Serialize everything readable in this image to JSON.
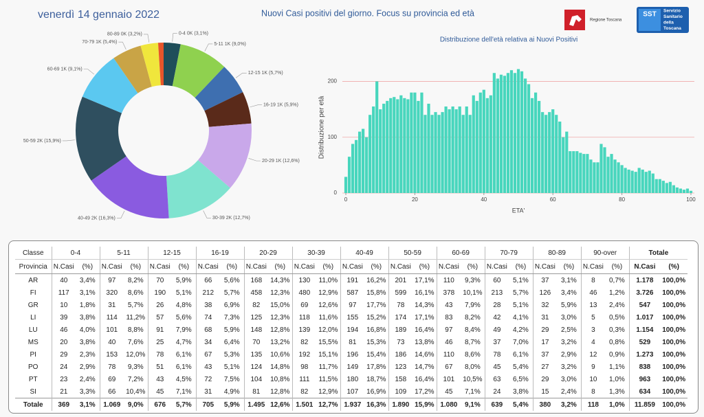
{
  "header": {
    "date": "venerdì 14 gennaio 2022",
    "title": "Nuovi Casi positivi del giorno. Focus su provincia ed età",
    "logo_left": "Regione Toscana",
    "logo_badge": "SST",
    "logo_right_lines": [
      "Servizio",
      "Sanitario",
      "della",
      "Toscana"
    ]
  },
  "chart_data": [
    {
      "type": "donut",
      "categories": [
        "0-4 0K (3,1%)",
        "5-11 1K (9,0%)",
        "12-15 1K (5,7%)",
        "16-19 1K (5,9%)",
        "20-29 1K (12,6%)",
        "30-39 2K (12,7%)",
        "40-49 2K (16,3%)",
        "50-59 2K (15,9%)",
        "60-69 1K (9,1%)",
        "70-79 1K (5,4%)",
        "80-89 0K (3,2%)",
        null
      ],
      "values": [
        3.1,
        9.0,
        5.7,
        5.9,
        12.6,
        12.7,
        16.3,
        15.9,
        9.1,
        5.4,
        3.2,
        1.0
      ],
      "colors": [
        "#1f4e5a",
        "#8fd14f",
        "#3e6fb0",
        "#5a2a1a",
        "#c9a8ea",
        "#7fe3cf",
        "#8a5be0",
        "#2f4f5f",
        "#5bc8f0",
        "#c9a446",
        "#f0e63c",
        "#e8552a"
      ]
    },
    {
      "type": "bar",
      "title": "Distribuzione dell'età relativa ai Nuovi Positivi",
      "x_label": "ETA'",
      "y_label": "Distribuzione per età",
      "x": [
        0,
        1,
        2,
        3,
        4,
        5,
        6,
        7,
        8,
        9,
        10,
        11,
        12,
        13,
        14,
        15,
        16,
        17,
        18,
        19,
        20,
        21,
        22,
        23,
        24,
        25,
        26,
        27,
        28,
        29,
        30,
        31,
        32,
        33,
        34,
        35,
        36,
        37,
        38,
        39,
        40,
        41,
        42,
        43,
        44,
        45,
        46,
        47,
        48,
        49,
        50,
        51,
        52,
        53,
        54,
        55,
        56,
        57,
        58,
        59,
        60,
        61,
        62,
        63,
        64,
        65,
        66,
        67,
        68,
        69,
        70,
        71,
        72,
        73,
        74,
        75,
        76,
        77,
        78,
        79,
        80,
        81,
        82,
        83,
        84,
        85,
        86,
        87,
        88,
        89,
        90,
        91,
        92,
        93,
        94,
        95,
        96,
        97,
        98,
        99,
        100
      ],
      "values": [
        29,
        65,
        88,
        95,
        110,
        115,
        100,
        140,
        155,
        200,
        150,
        160,
        165,
        170,
        172,
        168,
        175,
        170,
        168,
        180,
        180,
        165,
        180,
        140,
        160,
        140,
        145,
        140,
        145,
        155,
        150,
        155,
        150,
        155,
        140,
        155,
        140,
        175,
        165,
        180,
        185,
        170,
        175,
        215,
        205,
        212,
        210,
        215,
        220,
        215,
        222,
        218,
        205,
        195,
        170,
        180,
        165,
        145,
        140,
        145,
        150,
        140,
        128,
        100,
        110,
        75,
        75,
        75,
        72,
        70,
        70,
        60,
        55,
        55,
        88,
        82,
        65,
        70,
        60,
        55,
        50,
        45,
        42,
        40,
        38,
        45,
        42,
        38,
        40,
        35,
        25,
        25,
        22,
        18,
        20,
        14,
        10,
        8,
        6,
        8,
        4
      ],
      "color": "#48d6bd",
      "xlim": [
        -1,
        101
      ],
      "ylim": [
        0,
        235
      ],
      "xticks": [
        0,
        20,
        40,
        60,
        80,
        100
      ],
      "yticks": [
        0,
        100,
        200
      ],
      "grid": true
    }
  ],
  "table": {
    "first_header": "Classe",
    "second_header": "Provincia",
    "groups": [
      "0-4",
      "5-11",
      "12-15",
      "16-19",
      "20-29",
      "30-39",
      "40-49",
      "50-59",
      "60-69",
      "70-79",
      "80-89",
      "90-over",
      "Totale"
    ],
    "sub_headers": [
      "N.Casi",
      "(%)"
    ],
    "rows": [
      [
        "AR",
        "40",
        "3,4%",
        "97",
        "8,2%",
        "70",
        "5,9%",
        "66",
        "5,6%",
        "168",
        "14,3%",
        "130",
        "11,0%",
        "191",
        "16,2%",
        "201",
        "17,1%",
        "110",
        "9,3%",
        "60",
        "5,1%",
        "37",
        "3,1%",
        "8",
        "0,7%",
        "1.178",
        "100,0%"
      ],
      [
        "FI",
        "117",
        "3,1%",
        "320",
        "8,6%",
        "190",
        "5,1%",
        "212",
        "5,7%",
        "458",
        "12,3%",
        "480",
        "12,9%",
        "587",
        "15,8%",
        "599",
        "16,1%",
        "378",
        "10,1%",
        "213",
        "5,7%",
        "126",
        "3,4%",
        "46",
        "1,2%",
        "3.726",
        "100,0%"
      ],
      [
        "GR",
        "10",
        "1,8%",
        "31",
        "5,7%",
        "26",
        "4,8%",
        "38",
        "6,9%",
        "82",
        "15,0%",
        "69",
        "12,6%",
        "97",
        "17,7%",
        "78",
        "14,3%",
        "43",
        "7,9%",
        "28",
        "5,1%",
        "32",
        "5,9%",
        "13",
        "2,4%",
        "547",
        "100,0%"
      ],
      [
        "LI",
        "39",
        "3,8%",
        "114",
        "11,2%",
        "57",
        "5,6%",
        "74",
        "7,3%",
        "125",
        "12,3%",
        "118",
        "11,6%",
        "155",
        "15,2%",
        "174",
        "17,1%",
        "83",
        "8,2%",
        "42",
        "4,1%",
        "31",
        "3,0%",
        "5",
        "0,5%",
        "1.017",
        "100,0%"
      ],
      [
        "LU",
        "46",
        "4,0%",
        "101",
        "8,8%",
        "91",
        "7,9%",
        "68",
        "5,9%",
        "148",
        "12,8%",
        "139",
        "12,0%",
        "194",
        "16,8%",
        "189",
        "16,4%",
        "97",
        "8,4%",
        "49",
        "4,2%",
        "29",
        "2,5%",
        "3",
        "0,3%",
        "1.154",
        "100,0%"
      ],
      [
        "MS",
        "20",
        "3,8%",
        "40",
        "7,6%",
        "25",
        "4,7%",
        "34",
        "6,4%",
        "70",
        "13,2%",
        "82",
        "15,5%",
        "81",
        "15,3%",
        "73",
        "13,8%",
        "46",
        "8,7%",
        "37",
        "7,0%",
        "17",
        "3,2%",
        "4",
        "0,8%",
        "529",
        "100,0%"
      ],
      [
        "PI",
        "29",
        "2,3%",
        "153",
        "12,0%",
        "78",
        "6,1%",
        "67",
        "5,3%",
        "135",
        "10,6%",
        "192",
        "15,1%",
        "196",
        "15,4%",
        "186",
        "14,6%",
        "110",
        "8,6%",
        "78",
        "6,1%",
        "37",
        "2,9%",
        "12",
        "0,9%",
        "1.273",
        "100,0%"
      ],
      [
        "PO",
        "24",
        "2,9%",
        "78",
        "9,3%",
        "51",
        "6,1%",
        "43",
        "5,1%",
        "124",
        "14,8%",
        "98",
        "11,7%",
        "149",
        "17,8%",
        "123",
        "14,7%",
        "67",
        "8,0%",
        "45",
        "5,4%",
        "27",
        "3,2%",
        "9",
        "1,1%",
        "838",
        "100,0%"
      ],
      [
        "PT",
        "23",
        "2,4%",
        "69",
        "7,2%",
        "43",
        "4,5%",
        "72",
        "7,5%",
        "104",
        "10,8%",
        "111",
        "11,5%",
        "180",
        "18,7%",
        "158",
        "16,4%",
        "101",
        "10,5%",
        "63",
        "6,5%",
        "29",
        "3,0%",
        "10",
        "1,0%",
        "963",
        "100,0%"
      ],
      [
        "SI",
        "21",
        "3,3%",
        "66",
        "10,4%",
        "45",
        "7,1%",
        "31",
        "4,9%",
        "81",
        "12,8%",
        "82",
        "12,9%",
        "107",
        "16,9%",
        "109",
        "17,2%",
        "45",
        "7,1%",
        "24",
        "3,8%",
        "15",
        "2,4%",
        "8",
        "1,3%",
        "634",
        "100,0%"
      ],
      [
        "Totale",
        "369",
        "3,1%",
        "1.069",
        "9,0%",
        "676",
        "5,7%",
        "705",
        "5,9%",
        "1.495",
        "12,6%",
        "1.501",
        "12,7%",
        "1.937",
        "16,3%",
        "1.890",
        "15,9%",
        "1.080",
        "9,1%",
        "639",
        "5,4%",
        "380",
        "3,2%",
        "118",
        "1,0%",
        "11.859",
        "100,0%"
      ]
    ]
  }
}
